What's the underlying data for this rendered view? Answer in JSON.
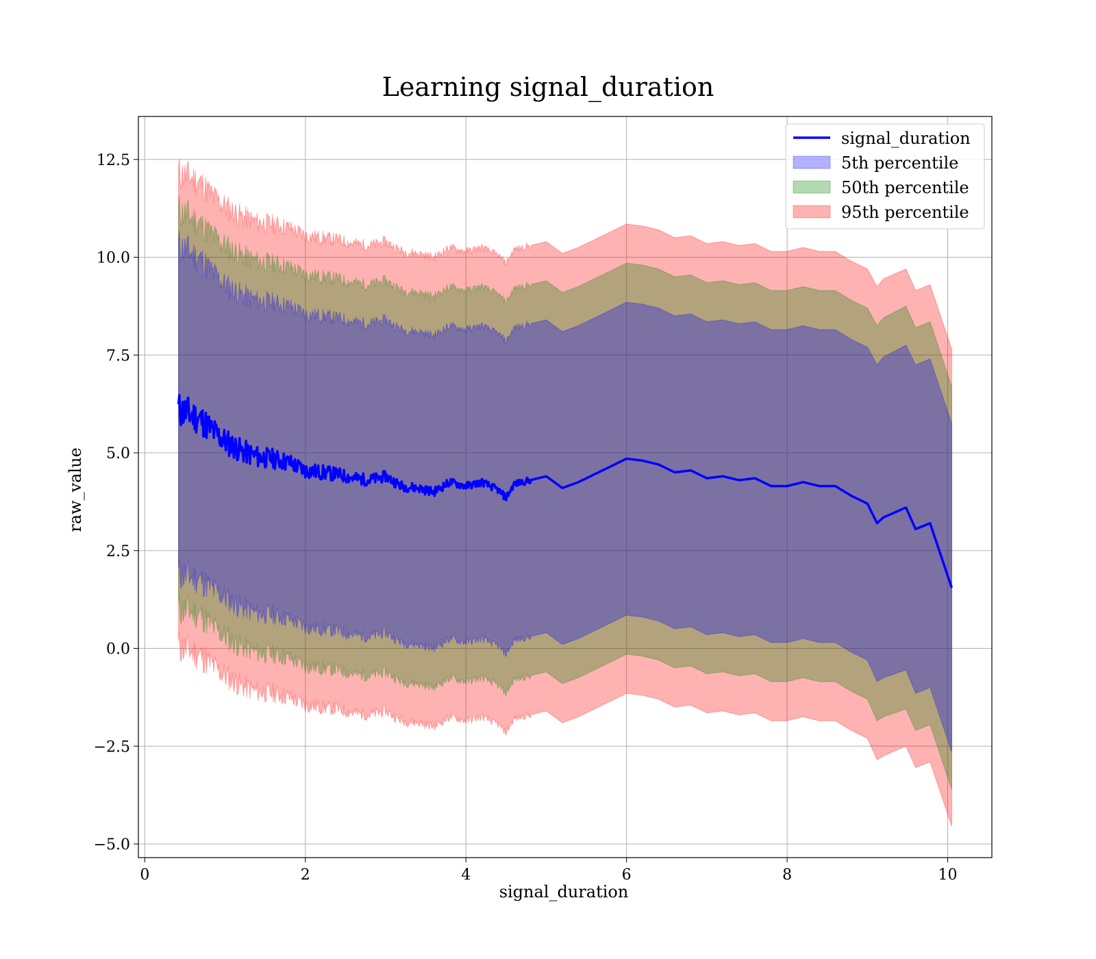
{
  "chart_data": {
    "type": "area",
    "title": "Learning signal_duration",
    "xlabel": "signal_duration",
    "ylabel": "raw_value",
    "xlim": [
      -0.08,
      10.55
    ],
    "ylim": [
      -5.35,
      13.6
    ],
    "xticks": [
      0,
      2,
      4,
      6,
      8,
      10
    ],
    "yticks": [
      -5.0,
      -2.5,
      0.0,
      2.5,
      5.0,
      7.5,
      10.0,
      12.5
    ],
    "xtick_labels": [
      "0",
      "2",
      "4",
      "6",
      "8",
      "10"
    ],
    "ytick_labels": [
      "−5.0",
      "−2.5",
      "0.0",
      "2.5",
      "5.0",
      "7.5",
      "10.0",
      "12.5"
    ],
    "grid": true,
    "legend_position": "top-right",
    "x": [
      0.42,
      0.55,
      0.7,
      0.85,
      1.0,
      1.2,
      1.4,
      1.6,
      1.8,
      2.0,
      2.2,
      2.4,
      2.6,
      2.8,
      3.0,
      3.2,
      3.4,
      3.6,
      3.8,
      4.0,
      4.2,
      4.4,
      4.5,
      4.6,
      4.8,
      5.0,
      5.2,
      5.4,
      5.6,
      5.8,
      6.0,
      6.2,
      6.4,
      6.6,
      6.8,
      7.0,
      7.2,
      7.4,
      7.6,
      7.8,
      8.0,
      8.2,
      8.4,
      8.6,
      8.8,
      9.0,
      9.12,
      9.2,
      9.48,
      9.6,
      9.78,
      10.05
    ],
    "mean": [
      6.1,
      6.0,
      5.85,
      5.55,
      5.3,
      5.05,
      4.9,
      4.85,
      4.75,
      4.55,
      4.5,
      4.45,
      4.35,
      4.3,
      4.4,
      4.15,
      4.1,
      4.0,
      4.25,
      4.15,
      4.25,
      4.05,
      3.85,
      4.2,
      4.3,
      4.4,
      4.1,
      4.25,
      4.45,
      4.65,
      4.85,
      4.8,
      4.7,
      4.5,
      4.55,
      4.35,
      4.4,
      4.3,
      4.35,
      4.15,
      4.15,
      4.25,
      4.15,
      4.15,
      3.9,
      3.7,
      3.2,
      3.35,
      3.6,
      3.05,
      3.2,
      1.55
    ],
    "series": [
      {
        "name": "5th percentile",
        "color": "#0000ff",
        "half_width": [
          4.2,
          4.15,
          4.1,
          4.05,
          4.0,
          4.0,
          4.0,
          4.0,
          4.0,
          4.0,
          4.0,
          4.0,
          4.0,
          4.0,
          4.0,
          4.0,
          4.0,
          4.0,
          4.0,
          4.0,
          4.0,
          4.0,
          4.0,
          4.0,
          4.0,
          4.0,
          4.0,
          4.0,
          4.0,
          4.0,
          4.0,
          4.0,
          4.0,
          4.0,
          4.0,
          4.0,
          4.0,
          4.0,
          4.0,
          4.0,
          4.0,
          4.0,
          4.0,
          4.0,
          4.0,
          4.0,
          4.05,
          4.1,
          4.15,
          4.2,
          4.2,
          4.2
        ]
      },
      {
        "name": "50th percentile",
        "color": "#008000",
        "half_width": [
          5.1,
          5.05,
          5.0,
          5.0,
          5.0,
          5.0,
          5.0,
          5.0,
          5.0,
          5.0,
          5.0,
          5.0,
          5.0,
          5.0,
          5.0,
          5.0,
          5.0,
          5.0,
          5.0,
          5.0,
          5.0,
          5.0,
          5.0,
          5.0,
          5.0,
          5.0,
          5.0,
          5.0,
          5.0,
          5.0,
          5.0,
          5.0,
          5.0,
          5.0,
          5.0,
          5.0,
          5.0,
          5.0,
          5.0,
          5.0,
          5.0,
          5.0,
          5.0,
          5.0,
          5.0,
          5.0,
          5.05,
          5.1,
          5.15,
          5.15,
          5.15,
          5.15
        ]
      },
      {
        "name": "95th percentile",
        "color": "#ff0000",
        "half_width": [
          6.05,
          6.05,
          6.05,
          6.0,
          6.0,
          6.0,
          6.0,
          6.0,
          6.0,
          6.0,
          6.0,
          6.0,
          6.0,
          6.0,
          6.0,
          6.0,
          6.0,
          6.0,
          6.0,
          6.0,
          6.0,
          6.0,
          6.0,
          6.0,
          6.0,
          6.0,
          6.0,
          6.0,
          6.0,
          6.0,
          6.0,
          6.0,
          6.0,
          6.0,
          6.0,
          6.0,
          6.0,
          6.0,
          6.0,
          6.0,
          6.0,
          6.0,
          6.0,
          6.0,
          6.0,
          6.0,
          6.05,
          6.1,
          6.1,
          6.1,
          6.1,
          6.1
        ]
      }
    ],
    "line_series": {
      "name": "signal_duration",
      "color": "#0000ff"
    }
  }
}
